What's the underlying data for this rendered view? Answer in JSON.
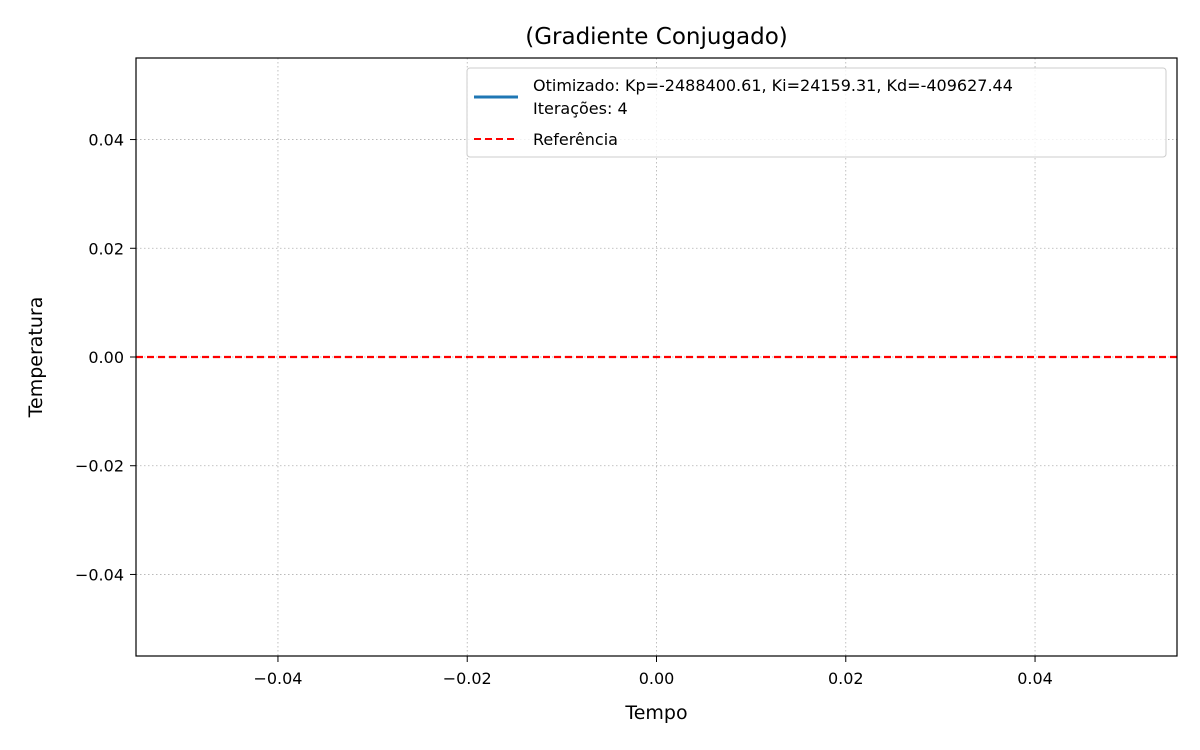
{
  "chart_data": {
    "type": "line",
    "title": "(Gradiente Conjugado)",
    "xlabel": "Tempo",
    "ylabel": "Temperatura",
    "xlim": [
      -0.055,
      0.055
    ],
    "ylim": [
      -0.055,
      0.055
    ],
    "xticks": [
      -0.04,
      -0.02,
      0.0,
      0.02,
      0.04
    ],
    "yticks": [
      -0.04,
      -0.02,
      0.0,
      0.02,
      0.04
    ],
    "xtick_labels": [
      "−0.04",
      "−0.02",
      "0.00",
      "0.02",
      "0.04"
    ],
    "ytick_labels": [
      "−0.04",
      "−0.02",
      "0.00",
      "0.02",
      "0.04"
    ],
    "grid": true,
    "legend_position": "top-right",
    "series": [
      {
        "name": "Otimizado: Kp=-2488400.61, Ki=24159.31, Kd=-409627.44",
        "name_line2": "Iterações: 4",
        "x": [],
        "y": [],
        "color": "#1f77b4",
        "style": "solid"
      },
      {
        "name": "Referência",
        "type": "hline",
        "y": 0.0,
        "color": "#ff0000",
        "style": "dashed"
      }
    ]
  }
}
